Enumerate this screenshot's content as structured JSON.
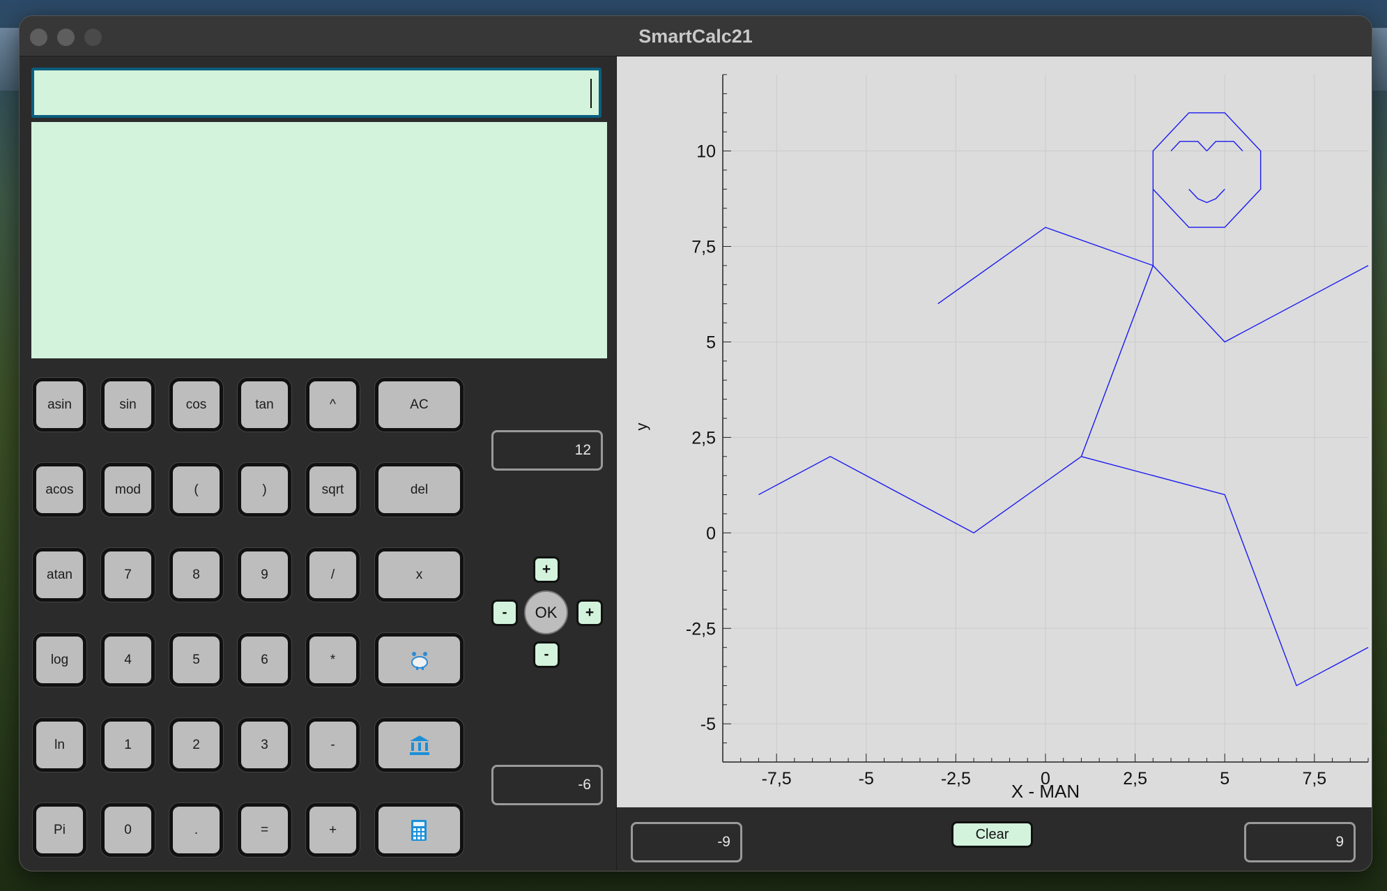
{
  "window": {
    "title": "SmartCalc21"
  },
  "display": {
    "expression": "",
    "result": ""
  },
  "keypad": {
    "rows": [
      [
        "asin",
        "sin",
        "cos",
        "tan",
        "^",
        "AC"
      ],
      [
        "acos",
        "mod",
        "(",
        ")",
        "sqrt",
        "del"
      ],
      [
        "atan",
        "7",
        "8",
        "9",
        "/",
        "x"
      ],
      [
        "log",
        "4",
        "5",
        "6",
        "*",
        ""
      ],
      [
        "ln",
        "1",
        "2",
        "3",
        "-",
        ""
      ],
      [
        "Pi",
        "0",
        ".",
        "=",
        "+",
        ""
      ]
    ],
    "icon_keys": {
      "row3": "piggy-bank-icon",
      "row4": "bank-icon",
      "row5": "calculator-icon"
    }
  },
  "y_range": {
    "max": "12",
    "min": "-6"
  },
  "nav": {
    "up": "+",
    "left": "-",
    "ok": "OK",
    "right": "+",
    "down": "-"
  },
  "x_range": {
    "min": "-9",
    "max": "9"
  },
  "clear_label": "Clear",
  "chart_data": {
    "type": "line",
    "title": "",
    "xlabel": "X - MAN",
    "ylabel": "y",
    "xlim": [
      -9,
      9
    ],
    "ylim": [
      -6,
      12
    ],
    "x_ticks": [
      "-7,5",
      "-5",
      "-2,5",
      "0",
      "2,5",
      "5",
      "7,5"
    ],
    "x_tick_values": [
      -7.5,
      -5,
      -2.5,
      0,
      2.5,
      5,
      7.5
    ],
    "y_ticks": [
      "-5",
      "-2,5",
      "0",
      "2,5",
      "5",
      "7,5",
      "10"
    ],
    "y_tick_values": [
      -5,
      -2.5,
      0,
      2.5,
      5,
      7.5,
      10
    ],
    "grid": true,
    "line_color": "#1a1af0",
    "series": [
      {
        "x": [
          -8,
          -6,
          -2,
          1,
          3,
          0,
          -3
        ],
        "y": [
          1,
          2,
          0,
          2,
          7,
          8,
          6
        ]
      },
      {
        "x": [
          1,
          5,
          7,
          9
        ],
        "y": [
          2,
          1,
          -4,
          -3
        ]
      },
      {
        "x": [
          3,
          5,
          9
        ],
        "y": [
          7,
          5,
          7
        ]
      },
      {
        "x": [
          3,
          3,
          3.5,
          4,
          5,
          5.5,
          6,
          6,
          5.5,
          5,
          4,
          3.5,
          3
        ],
        "y": [
          7,
          10,
          10.5,
          11,
          11,
          10.5,
          10,
          9,
          8.5,
          8,
          8,
          8.5,
          9
        ]
      },
      {
        "x": [
          3.5,
          3.75,
          4,
          4.25,
          4.5
        ],
        "y": [
          10,
          10.25,
          10.25,
          10.25,
          10
        ]
      },
      {
        "x": [
          4.5,
          4.75,
          5,
          5.25,
          5.5
        ],
        "y": [
          10,
          10.25,
          10.25,
          10.25,
          10
        ]
      },
      {
        "x": [
          4,
          4.25,
          4.5,
          4.75,
          5
        ],
        "y": [
          9,
          8.75,
          8.65,
          8.75,
          9
        ]
      }
    ]
  }
}
